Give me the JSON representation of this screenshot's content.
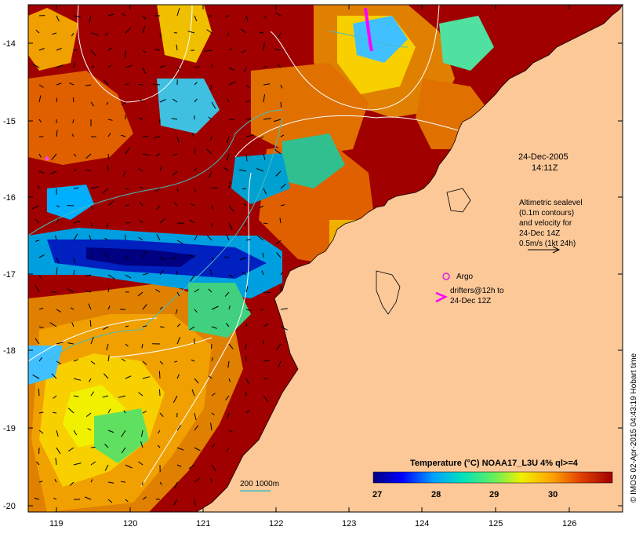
{
  "map": {
    "date": "24-Dec-2005",
    "time": "14:11Z",
    "altimetry_lines": [
      "Altimetric sealevel",
      "(0.1m contours)",
      "and velocity for",
      "24-Dec 14Z",
      "0.5m/s (1kt 24h)"
    ],
    "argo_label": "Argo",
    "drifters_lines": [
      "drifters@12h to",
      "24-Dec 12Z"
    ],
    "depth_label": "200  1000m",
    "credit": "© IMOS 02-Apr-2015 04:43:19 Hobart time",
    "lat_labels": [
      "-14",
      "-15",
      "-16",
      "-17",
      "-18",
      "-19",
      "-20"
    ],
    "lon_labels": [
      "119",
      "120",
      "121",
      "122",
      "123",
      "124",
      "125",
      "126"
    ],
    "colorbar": {
      "title": "Temperature (°C) NOAA17_L3U 4% ql>=4",
      "ticks": [
        "27",
        "28",
        "29",
        "30"
      ]
    },
    "colors": {
      "land": "#fcc898",
      "sst_hot": "#a00000",
      "argo": "#e020e0",
      "drifter": "#ff00ff",
      "isobath": "#40c0c0",
      "sealevel_contour": "#ffffff"
    }
  }
}
